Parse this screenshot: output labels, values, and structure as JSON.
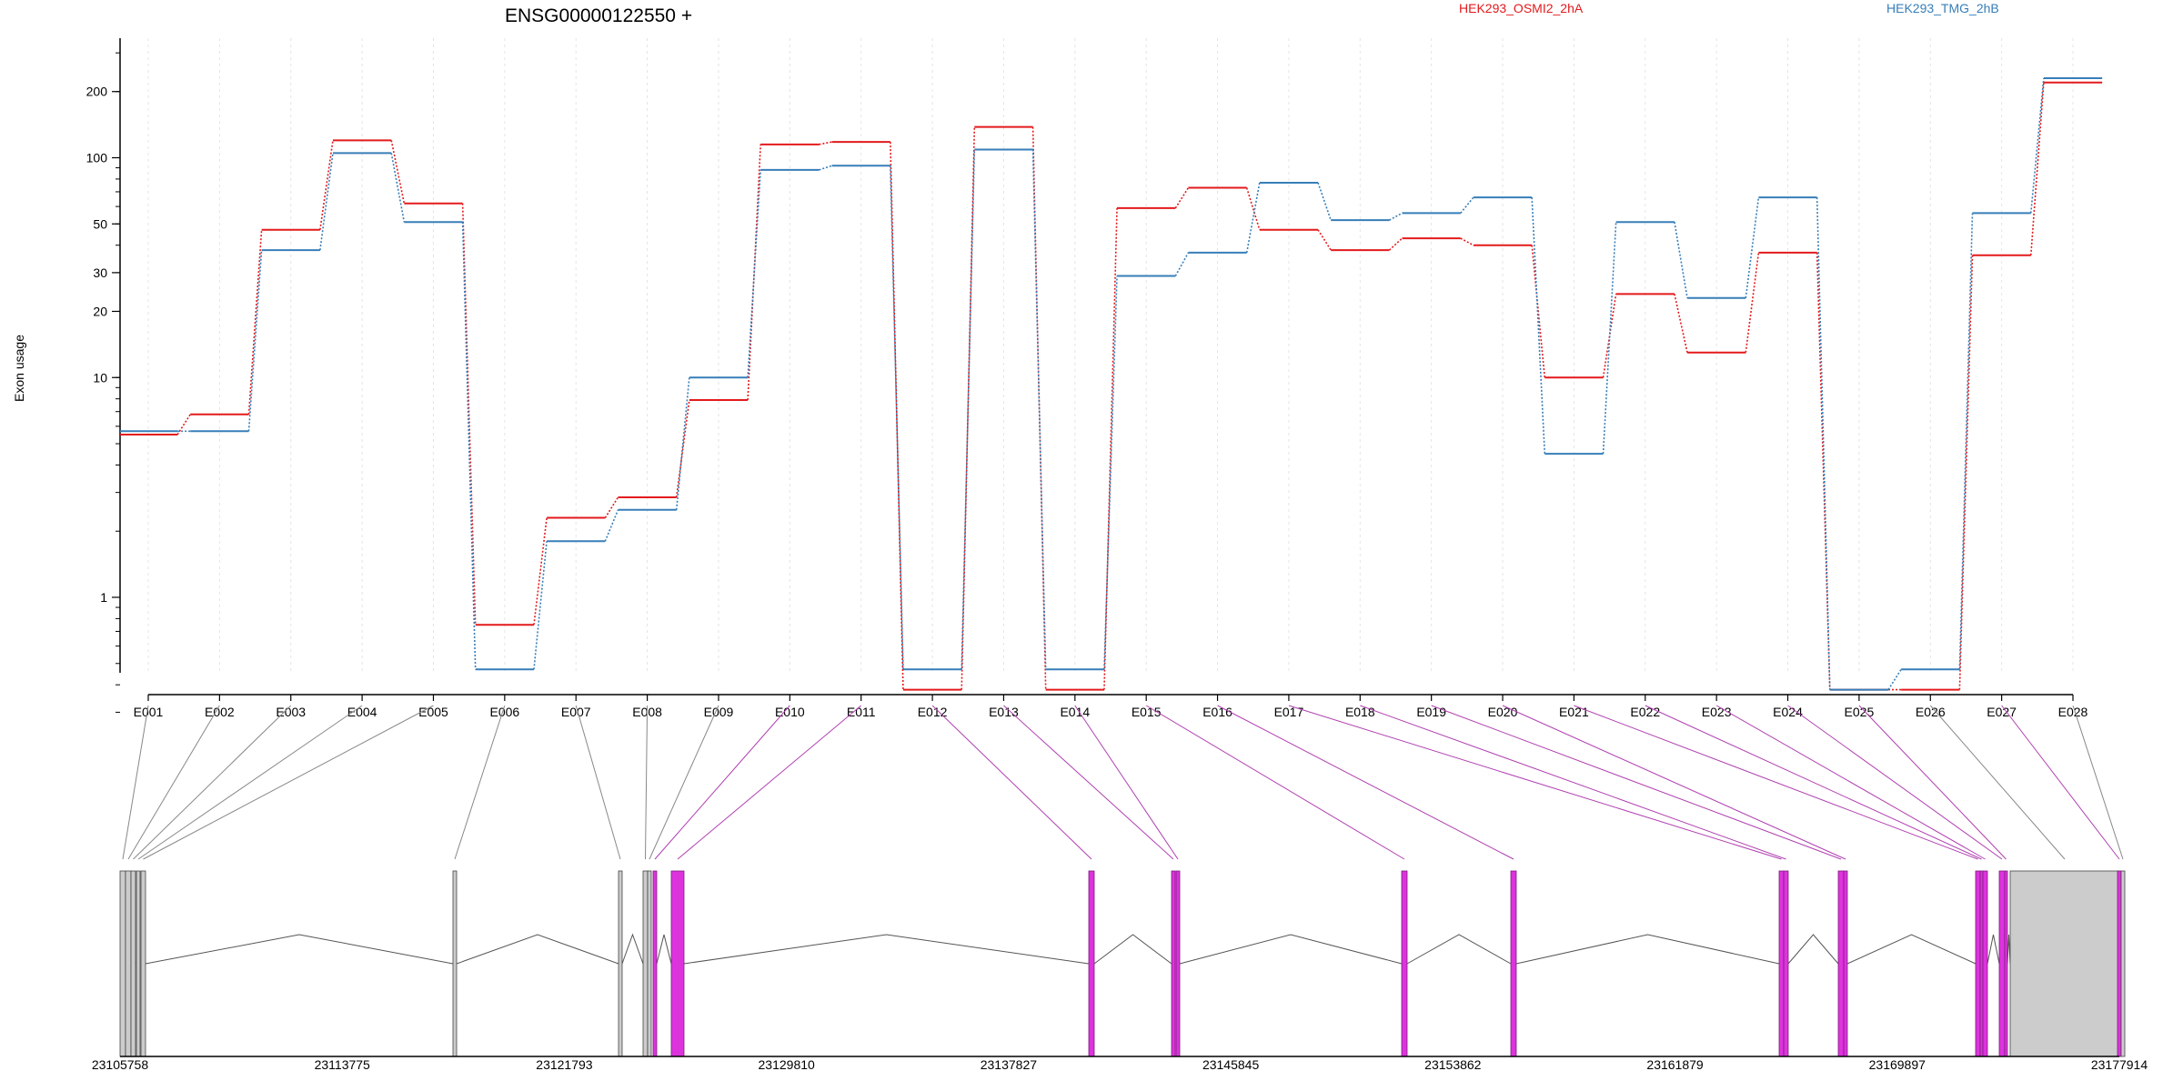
{
  "chart_data": {
    "type": "line",
    "title": "ENSG00000122550 +",
    "ylabel": "Exon usage",
    "yscale": "log",
    "ylim": [
      0.3,
      300
    ],
    "yticks": [
      1,
      10,
      20,
      30,
      50,
      100,
      200
    ],
    "grid": "vertical dotted lines at each exon",
    "legend_position": "top",
    "colors": {
      "series_a": "#e31a1c",
      "series_b": "#377eb8",
      "exon_tested": "#dd33dd",
      "exon_other": "#cccccc",
      "guide_tested": "#b040b0",
      "guide_other": "#888888"
    },
    "categories": [
      "E001",
      "E002",
      "E003",
      "E004",
      "E005",
      "E006",
      "E007",
      "E008",
      "E009",
      "E010",
      "E011",
      "E012",
      "E013",
      "E014",
      "E015",
      "E016",
      "E017",
      "E018",
      "E019",
      "E020",
      "E021",
      "E022",
      "E023",
      "E024",
      "E025",
      "E026",
      "E027",
      "E028"
    ],
    "series": [
      {
        "name": "HEK293_OSMI2_2hA",
        "color": "#e31a1c",
        "values": [
          5.5,
          6.8,
          47,
          120,
          62,
          0.75,
          2.3,
          2.85,
          7.9,
          115,
          118,
          0.38,
          138,
          0.38,
          59,
          73,
          47,
          38,
          43,
          40,
          10,
          24,
          13,
          37,
          0.38,
          0.38,
          36,
          220
        ]
      },
      {
        "name": "HEK293_TMG_2hB",
        "color": "#377eb8",
        "values": [
          5.7,
          5.7,
          38,
          105,
          51,
          0.47,
          1.8,
          2.5,
          10,
          88,
          92,
          0.47,
          109,
          0.47,
          29,
          37,
          77,
          52,
          56,
          66,
          4.5,
          51,
          23,
          66,
          0.38,
          0.47,
          56,
          230
        ]
      }
    ],
    "gene_model": {
      "coordinate_labels": [
        "23105758",
        "23113775",
        "23121793",
        "23129810",
        "23137827",
        "23145845",
        "23153862",
        "23161879",
        "23169897",
        "23177914"
      ],
      "exon_types": [
        "other",
        "other",
        "other",
        "other",
        "other",
        "other",
        "other",
        "other",
        "other",
        "tested",
        "tested",
        "tested",
        "tested",
        "tested",
        "tested",
        "tested",
        "tested",
        "tested",
        "tested",
        "tested",
        "tested",
        "tested",
        "tested",
        "tested",
        "tested",
        "other",
        "tested",
        "other"
      ]
    }
  }
}
